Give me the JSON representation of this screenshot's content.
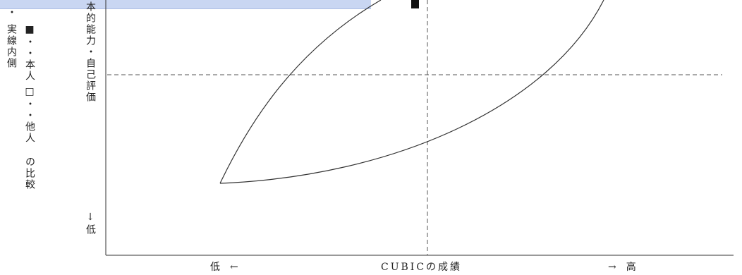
{
  "header_bar": {
    "color": "#c9d6f2"
  },
  "legend": {
    "col1": "実線内側",
    "col2": "■・・本人",
    "col3": "□・・他人",
    "col4": "の比較",
    "mark_top": "・"
  },
  "y_axis": {
    "label": "本的能力・自己評価",
    "low_label": "↓低"
  },
  "x_axis": {
    "low_label": "低　←",
    "title": "CUBICの成績",
    "high_label": "→　高"
  },
  "markers": {
    "self_marker": "■"
  },
  "colors": {
    "line": "#333333",
    "dash": "#555555",
    "marker": "#111111"
  }
}
